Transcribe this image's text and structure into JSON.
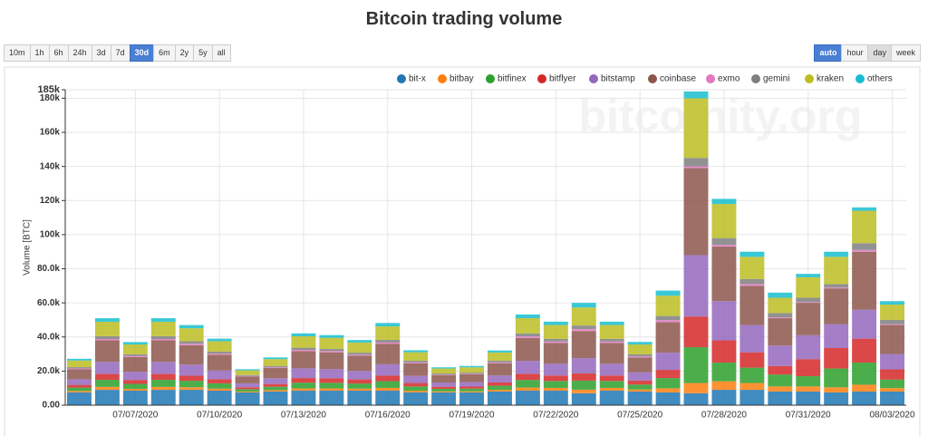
{
  "chart_data": {
    "type": "stacked_bar",
    "title": "Bitcoin trading volume",
    "y_label": "Volume [BTC]",
    "watermark": "bitcoinity.org",
    "categories": [
      null,
      null,
      "07/07/2020",
      null,
      null,
      "07/10/2020",
      null,
      null,
      "07/13/2020",
      null,
      null,
      "07/16/2020",
      null,
      null,
      "07/19/2020",
      null,
      null,
      "07/22/2020",
      null,
      null,
      "07/25/2020",
      null,
      null,
      "07/28/2020",
      null,
      null,
      "07/31/2020",
      null,
      null,
      "08/03/2020"
    ],
    "ylim": [
      0,
      185000
    ],
    "yticks": [
      {
        "value": 0,
        "label": "0.00"
      },
      {
        "value": 20000,
        "label": "20.0k"
      },
      {
        "value": 40000,
        "label": "40.0k"
      },
      {
        "value": 60000,
        "label": "60.0k"
      },
      {
        "value": 80000,
        "label": "80.0k"
      },
      {
        "value": 100000,
        "label": "100k"
      },
      {
        "value": 120000,
        "label": "120k"
      },
      {
        "value": 140000,
        "label": "140k"
      },
      {
        "value": 160000,
        "label": "160k"
      },
      {
        "value": 180000,
        "label": "180k"
      },
      {
        "value": 185000,
        "label": "185k"
      }
    ],
    "grid": true,
    "legend": "top-right",
    "series": [
      {
        "name": "bit-x",
        "color": "#1f77b4",
        "values": [
          7500,
          9000,
          8500,
          9000,
          9000,
          8500,
          7500,
          8000,
          8500,
          8500,
          8500,
          8500,
          7500,
          7500,
          7500,
          8000,
          8500,
          8500,
          7000,
          8500,
          8000,
          7500,
          7000,
          9000,
          9000,
          8000,
          8000,
          7500,
          8000,
          8000
        ]
      },
      {
        "name": "bitbay",
        "color": "#ff7f0e",
        "values": [
          800,
          1700,
          1100,
          1700,
          1500,
          1200,
          500,
          800,
          1300,
          1300,
          1200,
          1600,
          1000,
          600,
          600,
          1000,
          1800,
          1600,
          2100,
          1600,
          1200,
          2400,
          6000,
          5000,
          4000,
          3000,
          3000,
          3000,
          4000,
          2000
        ]
      },
      {
        "name": "bitfinex",
        "color": "#2ca02c",
        "values": [
          2000,
          4200,
          2900,
          4200,
          3800,
          3100,
          1400,
          2000,
          3400,
          3300,
          3000,
          4000,
          2500,
          1500,
          1600,
          2400,
          4500,
          4100,
          5300,
          4100,
          2900,
          6000,
          21000,
          11000,
          9000,
          7000,
          6000,
          11000,
          13000,
          5000
        ]
      },
      {
        "name": "bitflyer",
        "color": "#d62728",
        "values": [
          1600,
          3400,
          2300,
          3400,
          3000,
          2400,
          1100,
          1600,
          2700,
          2600,
          2400,
          3200,
          2000,
          1200,
          1200,
          1900,
          3600,
          3200,
          4200,
          3200,
          2300,
          4800,
          18000,
          13000,
          9000,
          5000,
          10000,
          12000,
          14000,
          6000
        ]
      },
      {
        "name": "bitstamp",
        "color": "#9467bd",
        "values": [
          3300,
          7100,
          4800,
          7100,
          6500,
          5200,
          2300,
          3400,
          5700,
          5500,
          5000,
          6700,
          4200,
          2500,
          2600,
          4100,
          7600,
          6900,
          9000,
          6900,
          4900,
          10100,
          36000,
          23000,
          16000,
          12000,
          14000,
          14000,
          17000,
          9000
        ]
      },
      {
        "name": "coinbase",
        "color": "#8c564b",
        "values": [
          5900,
          12600,
          8600,
          12600,
          11400,
          9200,
          4100,
          6000,
          10100,
          9800,
          8900,
          11900,
          7400,
          4400,
          4700,
          7200,
          13400,
          12200,
          15900,
          12200,
          8700,
          17900,
          51000,
          32000,
          23000,
          16000,
          19000,
          21000,
          34000,
          17000
        ]
      },
      {
        "name": "exmo",
        "color": "#e377c2",
        "values": [
          400,
          800,
          600,
          800,
          800,
          600,
          300,
          400,
          700,
          700,
          600,
          800,
          500,
          300,
          300,
          500,
          900,
          800,
          1100,
          800,
          600,
          1200,
          1000,
          1000,
          1000,
          500,
          500,
          500,
          1000,
          500
        ]
      },
      {
        "name": "gemini",
        "color": "#7f7f7f",
        "values": [
          800,
          1700,
          1100,
          1700,
          1500,
          1200,
          500,
          800,
          1300,
          1300,
          1200,
          1600,
          1000,
          600,
          600,
          1000,
          1800,
          1600,
          2100,
          1600,
          1200,
          2400,
          5000,
          4000,
          3000,
          2500,
          2500,
          2000,
          4000,
          2500
        ]
      },
      {
        "name": "kraken",
        "color": "#bcbd22",
        "values": [
          3900,
          8400,
          5700,
          8400,
          7600,
          6100,
          2700,
          4000,
          6700,
          6500,
          5900,
          7900,
          4900,
          2900,
          3100,
          4800,
          8900,
          8100,
          10600,
          8100,
          5800,
          11900,
          35000,
          20000,
          13000,
          9000,
          12000,
          16000,
          19000,
          9000
        ]
      },
      {
        "name": "others",
        "color": "#17becf",
        "values": [
          1000,
          2100,
          1400,
          2100,
          1900,
          1500,
          700,
          1000,
          1700,
          1600,
          1500,
          2000,
          1200,
          700,
          800,
          1200,
          2200,
          2000,
          2700,
          2000,
          1500,
          3000,
          4000,
          3000,
          3000,
          3000,
          2000,
          3000,
          2000,
          2000
        ]
      }
    ]
  },
  "range_buttons": [
    "10m",
    "1h",
    "6h",
    "24h",
    "3d",
    "7d",
    "30d",
    "6m",
    "2y",
    "5y",
    "all"
  ],
  "range_active": "30d",
  "resolution_buttons": [
    "auto",
    "hour",
    "day",
    "week"
  ],
  "resolution_active": "auto"
}
